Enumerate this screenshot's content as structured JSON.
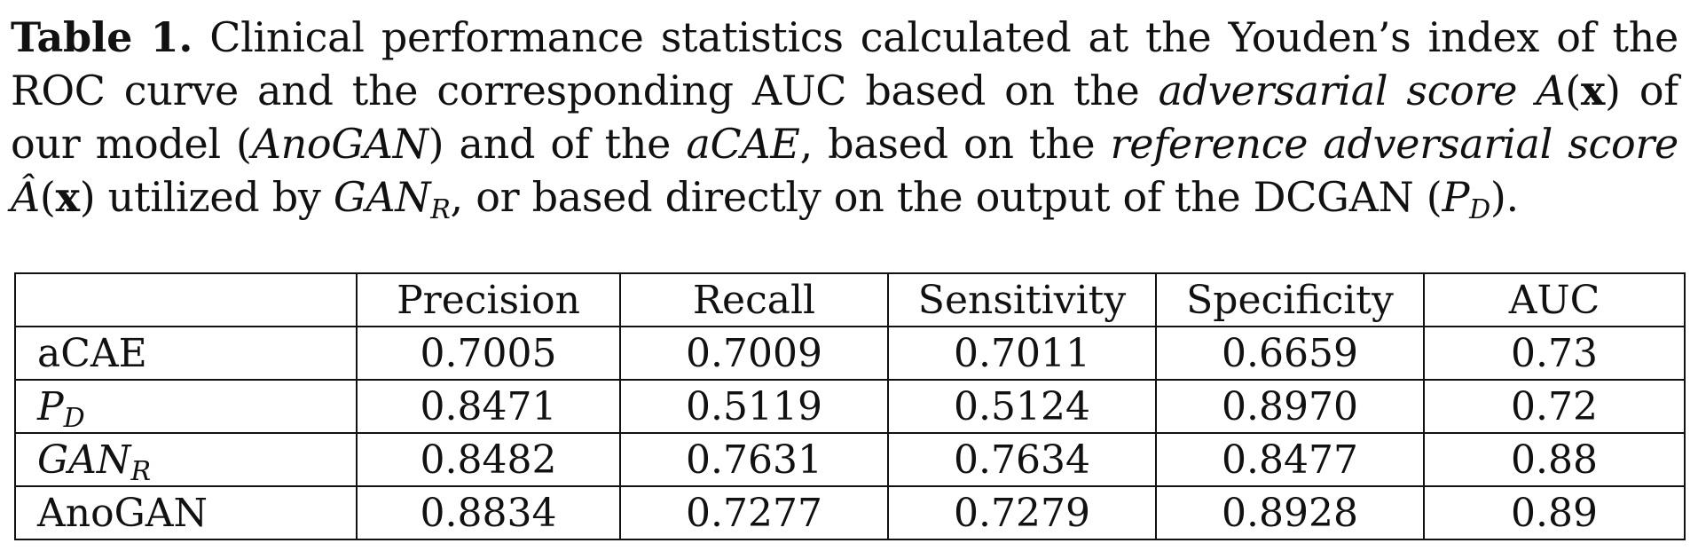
{
  "caption": {
    "label": "Table 1.",
    "text_1": " Clinical performance statistics calculated at the Youden’s index of the ROC curve and the corresponding AUC based on the ",
    "adv_score": "adversarial score",
    "score_symbol": "A",
    "paren_open": "(",
    "x": "x",
    "paren_close": ")",
    "text_2": " of our model (",
    "model_name": "AnoGAN",
    "text_3": ") and of the ",
    "acae": "aCAE",
    "text_4": ", based on the ",
    "ref_score": "reference adversarial score",
    "ref_symbol": "Â",
    "text_5": " utilized by ",
    "gan_r_main": "GAN",
    "gan_r_sub": "R",
    "text_6": ", or based directly on the output of the DCGAN (",
    "pd_main": "P",
    "pd_sub": "D",
    "text_7": ")."
  },
  "table": {
    "columns": [
      "",
      "Precision",
      "Recall",
      "Sensitivity",
      "Specificity",
      "AUC"
    ],
    "rows": [
      {
        "label": "aCAE",
        "label_sub": "",
        "italic": false,
        "values": [
          "0.7005",
          "0.7009",
          "0.7011",
          "0.6659",
          "0.73"
        ]
      },
      {
        "label": "P",
        "label_sub": "D",
        "italic": true,
        "values": [
          "0.8471",
          "0.5119",
          "0.5124",
          "0.8970",
          "0.72"
        ]
      },
      {
        "label": "GAN",
        "label_sub": "R",
        "italic": true,
        "values": [
          "0.8482",
          "0.7631",
          "0.7634",
          "0.8477",
          "0.88"
        ]
      },
      {
        "label": "AnoGAN",
        "label_sub": "",
        "italic": false,
        "values": [
          "0.8834",
          "0.7277",
          "0.7279",
          "0.8928",
          "0.89"
        ]
      }
    ]
  }
}
